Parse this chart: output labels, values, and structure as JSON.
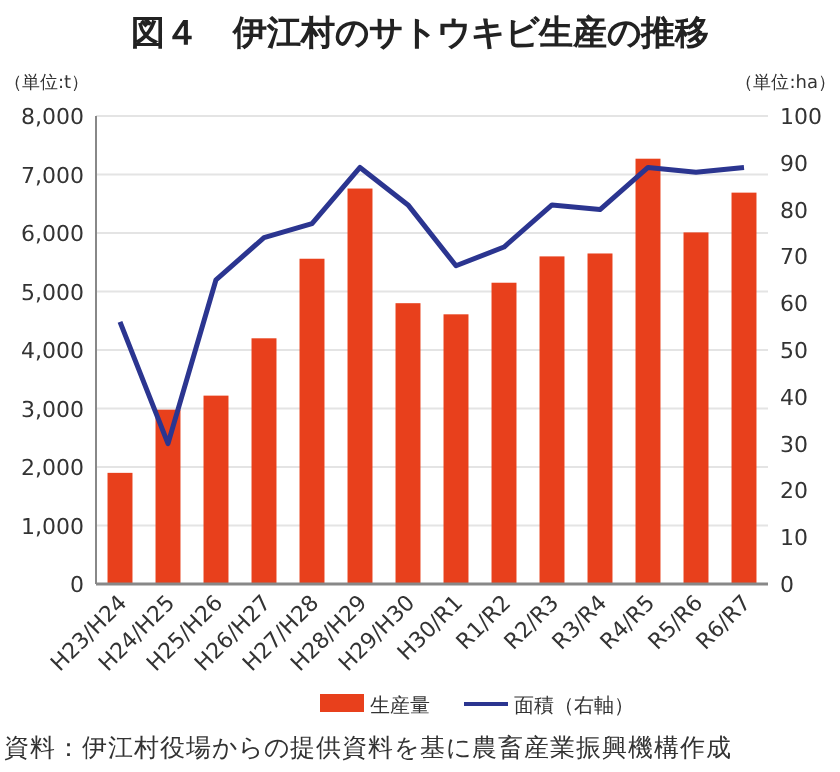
{
  "chart_data": {
    "type": "bar",
    "title": "図４　伊江村のサトウキビ生産の推移",
    "ylabel": "（単位:t）",
    "y2label": "（単位:ha）",
    "categories": [
      "H23/H24",
      "H24/H25",
      "H25/H26",
      "H26/H27",
      "H27/H28",
      "H28/H29",
      "H29/H30",
      "H30/R1",
      "R1/R2",
      "R2/R3",
      "R3/R4",
      "R4/R5",
      "R5/R6",
      "R6/R7"
    ],
    "series": [
      {
        "name": "生産量",
        "color": "#e8401c",
        "values": [
          1900,
          2980,
          3220,
          4200,
          5560,
          6760,
          4800,
          4610,
          5150,
          5600,
          5650,
          7270,
          6010,
          6690
        ]
      },
      {
        "name": "面積（右軸）",
        "type": "line",
        "axis": "y2",
        "color": "#2b3590",
        "values": [
          56,
          30,
          65,
          74,
          77,
          89,
          81,
          68,
          72,
          81,
          80,
          89,
          88,
          89
        ]
      }
    ],
    "ylim": [
      0,
      8000
    ],
    "yticks": [
      {
        "value": 0,
        "label": "0"
      },
      {
        "value": 1000,
        "label": "1,000"
      },
      {
        "value": 2000,
        "label": "2,000"
      },
      {
        "value": 3000,
        "label": "3,000"
      },
      {
        "value": 4000,
        "label": "4,000"
      },
      {
        "value": 5000,
        "label": "5,000"
      },
      {
        "value": 6000,
        "label": "6,000"
      },
      {
        "value": 7000,
        "label": "7,000"
      },
      {
        "value": 8000,
        "label": "8,000"
      }
    ],
    "y2lim": [
      0,
      100
    ],
    "y2ticks": [
      0,
      10,
      20,
      30,
      40,
      50,
      60,
      70,
      80,
      90,
      100
    ],
    "grid": "y",
    "legend": "bottom",
    "marker": "none",
    "line_style": "solid",
    "annotations": [
      "資料：伊江村役場からの提供資料を基に農畜産業振興機構作成"
    ]
  }
}
